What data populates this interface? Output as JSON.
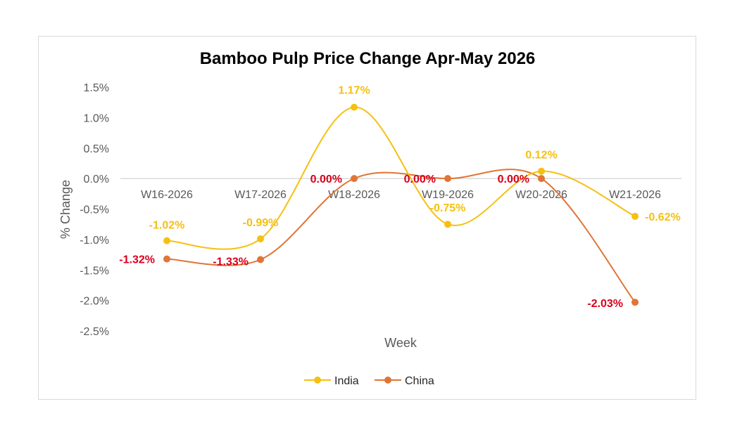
{
  "chart_data": {
    "type": "line",
    "title": "Bamboo Pulp Price Change Apr-May 2026",
    "xlabel": "Week",
    "ylabel": "% Change",
    "categories": [
      "W16-2026",
      "W17-2026",
      "W18-2026",
      "W19-2026",
      "W20-2026",
      "W21-2026"
    ],
    "ylim": [
      -2.5,
      1.5
    ],
    "yticks": [
      "1.5%",
      "1.0%",
      "0.5%",
      "0.0%",
      "-0.5%",
      "-1.0%",
      "-1.5%",
      "-2.0%",
      "-2.5%"
    ],
    "grid": false,
    "legend_position": "bottom",
    "smooth": true,
    "series": [
      {
        "name": "India",
        "color": "#f5c011",
        "values": [
          -1.02,
          -0.99,
          1.17,
          -0.75,
          0.12,
          -0.62
        ],
        "labels": [
          "-1.02%",
          "-0.99%",
          "1.17%",
          "-0.75%",
          "0.12%",
          "-0.62%"
        ]
      },
      {
        "name": "China",
        "color": "#e07535",
        "label_color": "#d9001b",
        "values": [
          -1.32,
          -1.33,
          0.0,
          0.0,
          0.0,
          -2.03
        ],
        "labels": [
          "-1.32%",
          "-1.33%",
          "0.00%",
          "0.00%",
          "0.00%",
          "-2.03%"
        ]
      }
    ]
  }
}
